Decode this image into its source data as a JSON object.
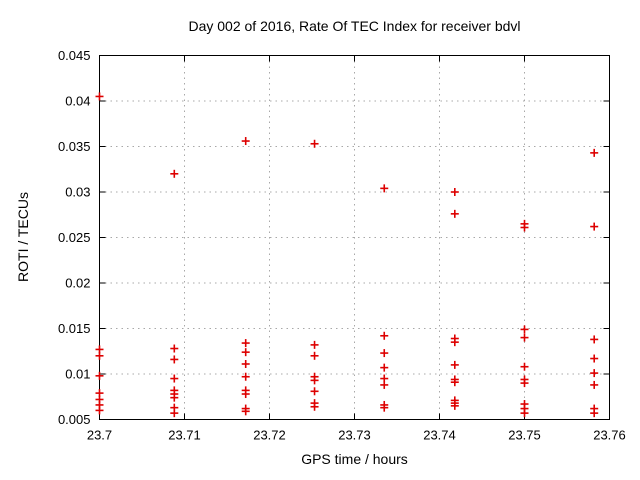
{
  "title": "Day 002 of 2016, Rate Of TEC Index for receiver bdvl",
  "chart_data": {
    "type": "scatter",
    "title": "Day 002 of 2016, Rate Of TEC Index for receiver bdvl",
    "xlabel": "GPS time / hours",
    "ylabel": "ROTI / TECUs",
    "xlim": [
      23.7,
      23.76
    ],
    "ylim": [
      0.005,
      0.045
    ],
    "grid": true,
    "legend": "none",
    "marker": {
      "shape": "plus",
      "color": "#dd0000"
    },
    "axis_color": "#000000",
    "grid_color": "#a8a8a8",
    "xticks": [
      {
        "v": 23.7,
        "label": "23.7"
      },
      {
        "v": 23.71,
        "label": "23.71"
      },
      {
        "v": 23.72,
        "label": "23.72"
      },
      {
        "v": 23.73,
        "label": "23.73"
      },
      {
        "v": 23.74,
        "label": "23.74"
      },
      {
        "v": 23.75,
        "label": "23.75"
      },
      {
        "v": 23.76,
        "label": "23.76"
      }
    ],
    "yticks": [
      {
        "v": 0.005,
        "label": "0.005"
      },
      {
        "v": 0.01,
        "label": "0.01"
      },
      {
        "v": 0.015,
        "label": "0.015"
      },
      {
        "v": 0.02,
        "label": "0.02"
      },
      {
        "v": 0.025,
        "label": "0.025"
      },
      {
        "v": 0.03,
        "label": "0.03"
      },
      {
        "v": 0.035,
        "label": "0.035"
      },
      {
        "v": 0.04,
        "label": "0.04"
      },
      {
        "v": 0.045,
        "label": "0.045"
      }
    ],
    "series": [
      {
        "name": "ROTI",
        "groups": [
          {
            "x": 23.7,
            "y": [
              0.0405,
              0.0127,
              0.012,
              0.0098,
              0.0079,
              0.0072,
              0.0066,
              0.006
            ]
          },
          {
            "x": 23.7088,
            "y": [
              0.032,
              0.0128,
              0.0116,
              0.0095,
              0.0082,
              0.0078,
              0.0074,
              0.0063,
              0.0057
            ]
          },
          {
            "x": 23.7172,
            "y": [
              0.0356,
              0.0134,
              0.0124,
              0.0111,
              0.0097,
              0.0082,
              0.0078,
              0.0062,
              0.0059
            ]
          },
          {
            "x": 23.7253,
            "y": [
              0.0353,
              0.0132,
              0.012,
              0.0097,
              0.0093,
              0.0081,
              0.0068,
              0.0064
            ]
          },
          {
            "x": 23.7335,
            "y": [
              0.0304,
              0.0142,
              0.0123,
              0.0107,
              0.0095,
              0.0088,
              0.0066,
              0.0063
            ]
          },
          {
            "x": 23.7418,
            "y": [
              0.03,
              0.0276,
              0.0139,
              0.0135,
              0.011,
              0.0094,
              0.0091,
              0.0071,
              0.0068,
              0.0065
            ]
          },
          {
            "x": 23.75,
            "y": [
              0.0265,
              0.0261,
              0.0149,
              0.014,
              0.0108,
              0.0094,
              0.009,
              0.0067,
              0.0062,
              0.0057
            ]
          },
          {
            "x": 23.7582,
            "y": [
              0.0343,
              0.0262,
              0.0138,
              0.0117,
              0.0101,
              0.0088,
              0.0062,
              0.0057
            ]
          }
        ]
      }
    ]
  }
}
